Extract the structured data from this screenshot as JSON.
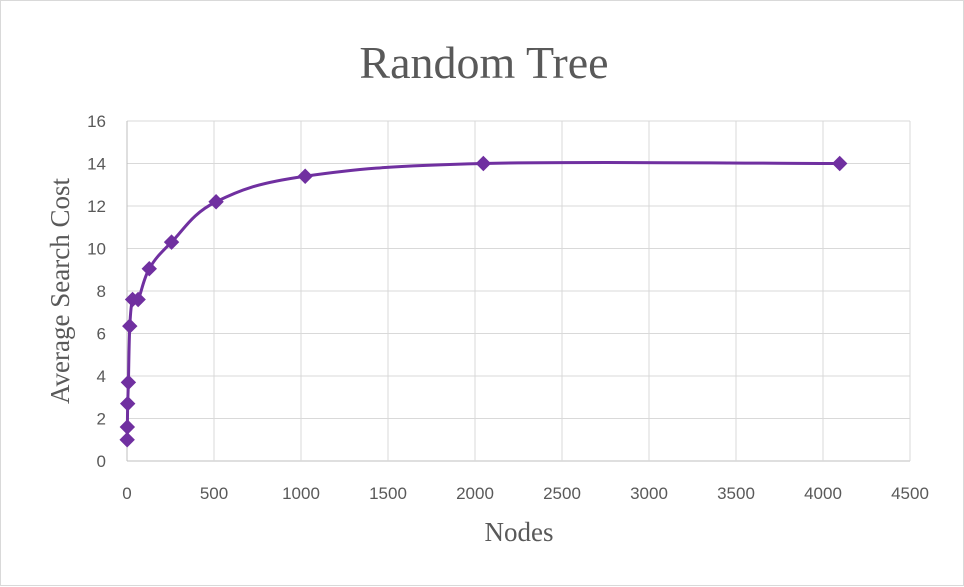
{
  "chart_data": {
    "type": "scatter",
    "title": "Random Tree",
    "xlabel": "Nodes",
    "ylabel": "Average Search Cost",
    "xlim": [
      0,
      4500
    ],
    "ylim": [
      0,
      16
    ],
    "xticks": [
      0,
      500,
      1000,
      1500,
      2000,
      2500,
      3000,
      3500,
      4000,
      4500
    ],
    "yticks": [
      0,
      2,
      4,
      6,
      8,
      10,
      12,
      14,
      16
    ],
    "grid": true,
    "legend": "none",
    "line_style": "smoothed line with diamond markers",
    "series": [
      {
        "x": [
          1,
          2,
          4,
          8,
          16,
          32,
          64,
          128,
          256,
          512,
          1024,
          2048,
          4096
        ],
        "y": [
          1.0,
          1.6,
          2.7,
          3.7,
          6.35,
          7.6,
          7.6,
          9.05,
          10.3,
          12.2,
          13.4,
          14.0,
          14.0
        ],
        "color": "#7030a0"
      }
    ]
  }
}
